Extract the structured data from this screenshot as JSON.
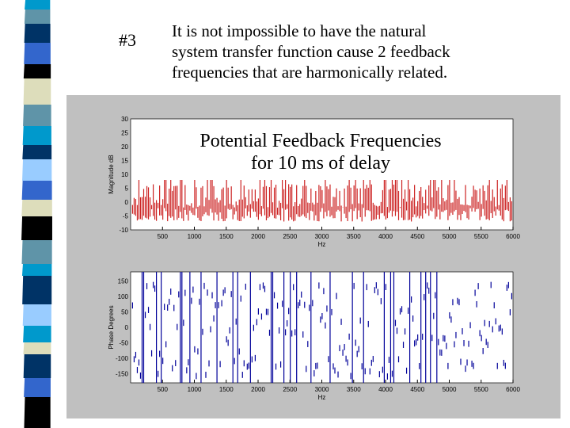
{
  "slide": {
    "number": "#3",
    "body_lines": [
      "It is not impossible to have the natural",
      "system transfer function cause 2 feedback",
      "frequencies that are harmonically related."
    ],
    "overlay_title_lines": [
      "Potential Feedback Frequencies",
      "for 10 ms of delay"
    ]
  },
  "stripe_colors": [
    "#0099cc",
    "#5f94a8",
    "#003366",
    "#3366cc",
    "#000000",
    "#ddddbb",
    "#5f94a8",
    "#0099cc",
    "#003366",
    "#99ccff",
    "#3366cc",
    "#ddddbb",
    "#000000",
    "#5f94a8",
    "#0099cc",
    "#003366",
    "#99ccff",
    "#0099cc",
    "#ddddbb",
    "#003366",
    "#3366cc",
    "#000000"
  ],
  "chart_data": [
    {
      "type": "line",
      "xlabel": "Hz",
      "ylabel": "Magnitude dB",
      "xlim": [
        0,
        6000
      ],
      "ylim": [
        -10,
        30
      ],
      "xticks": [
        "500",
        "1000",
        "1500",
        "2000",
        "2500",
        "3000",
        "3500",
        "4000",
        "4500",
        "5000",
        "5500",
        "6000"
      ],
      "yticks": [
        "30",
        "25",
        "20",
        "15",
        "10",
        "5",
        "0",
        "-5",
        "-10"
      ],
      "color": "#cc2222"
    },
    {
      "type": "line",
      "xlabel": "Hz",
      "ylabel": "Phase Degrees",
      "xlim": [
        0,
        6000
      ],
      "ylim": [
        -180,
        180
      ],
      "xticks": [
        "500",
        "1000",
        "1500",
        "2000",
        "2500",
        "3000",
        "3500",
        "4000",
        "4500",
        "5000",
        "5500",
        "6000"
      ],
      "yticks": [
        "150",
        "100",
        "50",
        "0",
        "-50",
        "-100",
        "-150"
      ],
      "color": "#000099"
    }
  ]
}
